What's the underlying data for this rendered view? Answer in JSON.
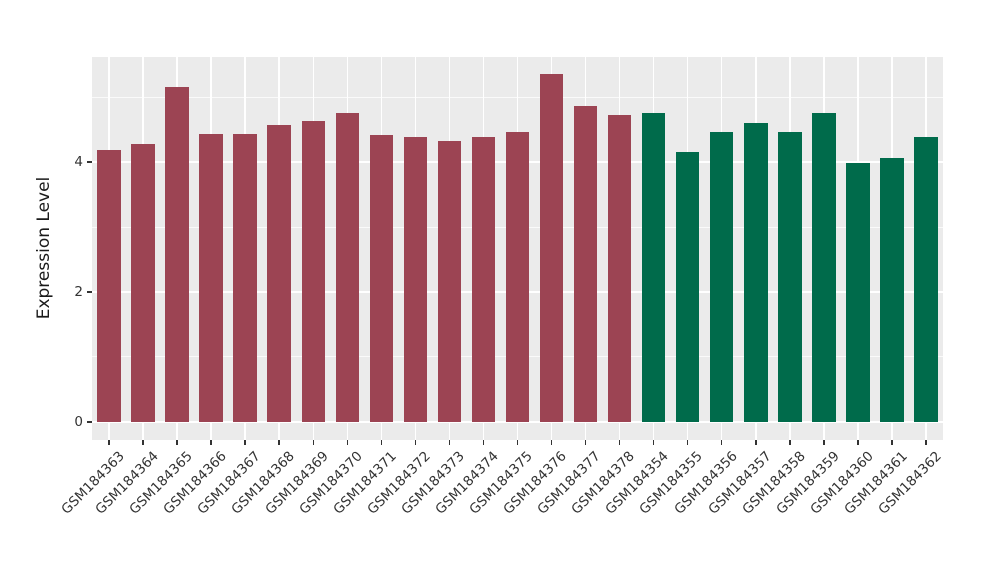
{
  "figure": {
    "background": "#FFFFFF",
    "panel_background": "#EBEBEB",
    "grid_color": "#FFFFFF",
    "axis_text_color": "#333333",
    "tick_color": "#333333"
  },
  "chart_data": {
    "type": "bar",
    "title": "",
    "xlabel": "",
    "ylabel": "Expression Level",
    "categories": [
      "GSM184363",
      "GSM184364",
      "GSM184365",
      "GSM184366",
      "GSM184367",
      "GSM184368",
      "GSM184369",
      "GSM184370",
      "GSM184371",
      "GSM184372",
      "GSM184373",
      "GSM184374",
      "GSM184375",
      "GSM184376",
      "GSM184377",
      "GSM184378",
      "GSM184354",
      "GSM184355",
      "GSM184356",
      "GSM184357",
      "GSM184358",
      "GSM184359",
      "GSM184360",
      "GSM184361",
      "GSM184362"
    ],
    "values": [
      4.18,
      4.28,
      5.16,
      4.44,
      4.43,
      4.57,
      4.63,
      4.76,
      4.42,
      4.39,
      4.32,
      4.38,
      4.46,
      5.36,
      4.87,
      4.73,
      4.76,
      4.15,
      4.46,
      4.61,
      4.46,
      4.75,
      3.98,
      4.06,
      4.38
    ],
    "groups": [
      {
        "color": "#9C4453",
        "count": 16
      },
      {
        "color": "#006B4B",
        "count": 9
      }
    ],
    "y_ticks": [
      0,
      2,
      4
    ],
    "y_minor_ticks": [
      1,
      3,
      5
    ],
    "ylim": [
      -0.28,
      5.62
    ],
    "x_tick_angle": -45,
    "grid": "on",
    "legend": "none"
  }
}
